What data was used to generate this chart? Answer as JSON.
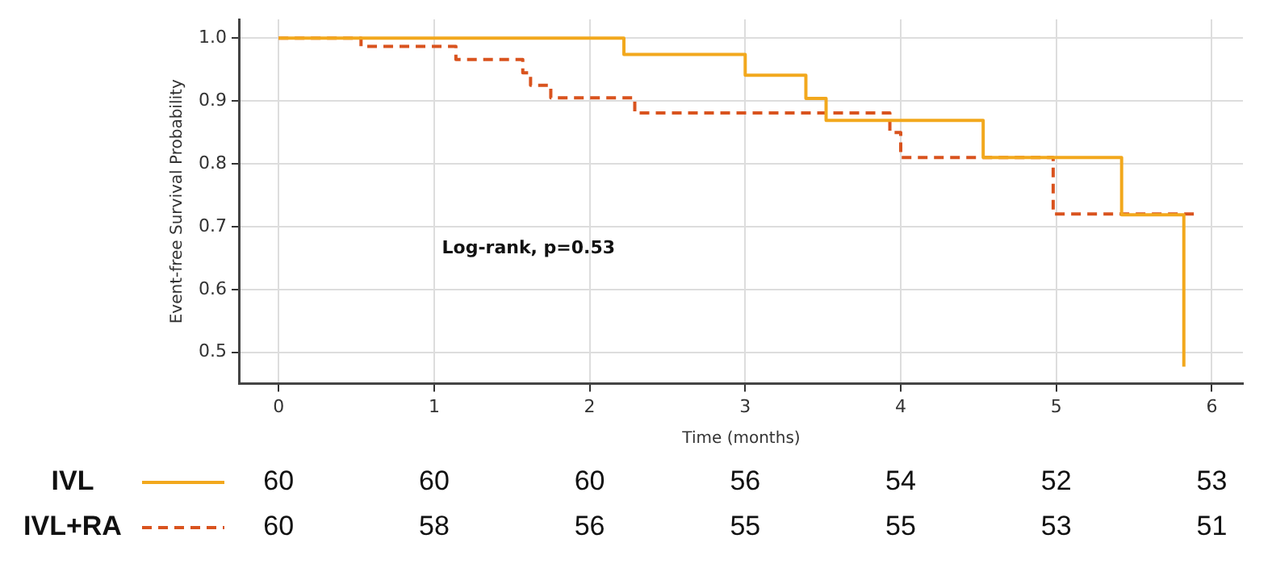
{
  "chart_data": {
    "type": "step",
    "xlabel": "Time (months)",
    "ylabel": "Event-free Survival Probability",
    "xlim": [
      -0.25,
      6.2
    ],
    "xticks": [
      0,
      1,
      2,
      3,
      4,
      5,
      6
    ],
    "ylim": [
      0.45,
      1.03
    ],
    "yticks": [
      {
        "value": 0.5,
        "label": "0.5"
      },
      {
        "value": 0.6,
        "label": "0.6"
      },
      {
        "value": 0.7,
        "label": "0.7"
      },
      {
        "value": 0.8,
        "label": "0.8"
      },
      {
        "value": 0.9,
        "label": "0.9"
      },
      {
        "value": 1.0,
        "label": "1.0"
      }
    ],
    "grid": true,
    "legend": "bottom",
    "marker": "none",
    "series": [
      {
        "name": "IVL",
        "color": "#f2a81d",
        "line_style": "solid",
        "x": [
          0,
          2.22,
          3.0,
          3.39,
          3.52,
          4.53,
          5.42,
          5.82
        ],
        "values": [
          1.0,
          0.974,
          0.941,
          0.904,
          0.869,
          0.81,
          0.719,
          0.477
        ]
      },
      {
        "name": "IVL+RA",
        "color": "#d9531e",
        "line_style": "dashed",
        "x": [
          0,
          0.53,
          1.14,
          1.57,
          1.62,
          1.75,
          2.29,
          3.93,
          4.0,
          4.98,
          5.91
        ],
        "values": [
          1.0,
          0.987,
          0.966,
          0.945,
          0.925,
          0.905,
          0.881,
          0.85,
          0.81,
          0.72,
          0.72
        ]
      }
    ],
    "annotations": [
      "Log-rank, p=0.53",
      "60",
      "60",
      "60",
      "56",
      "54",
      "52",
      "53",
      "60",
      "58",
      "56",
      "55",
      "55",
      "53",
      "51"
    ]
  }
}
